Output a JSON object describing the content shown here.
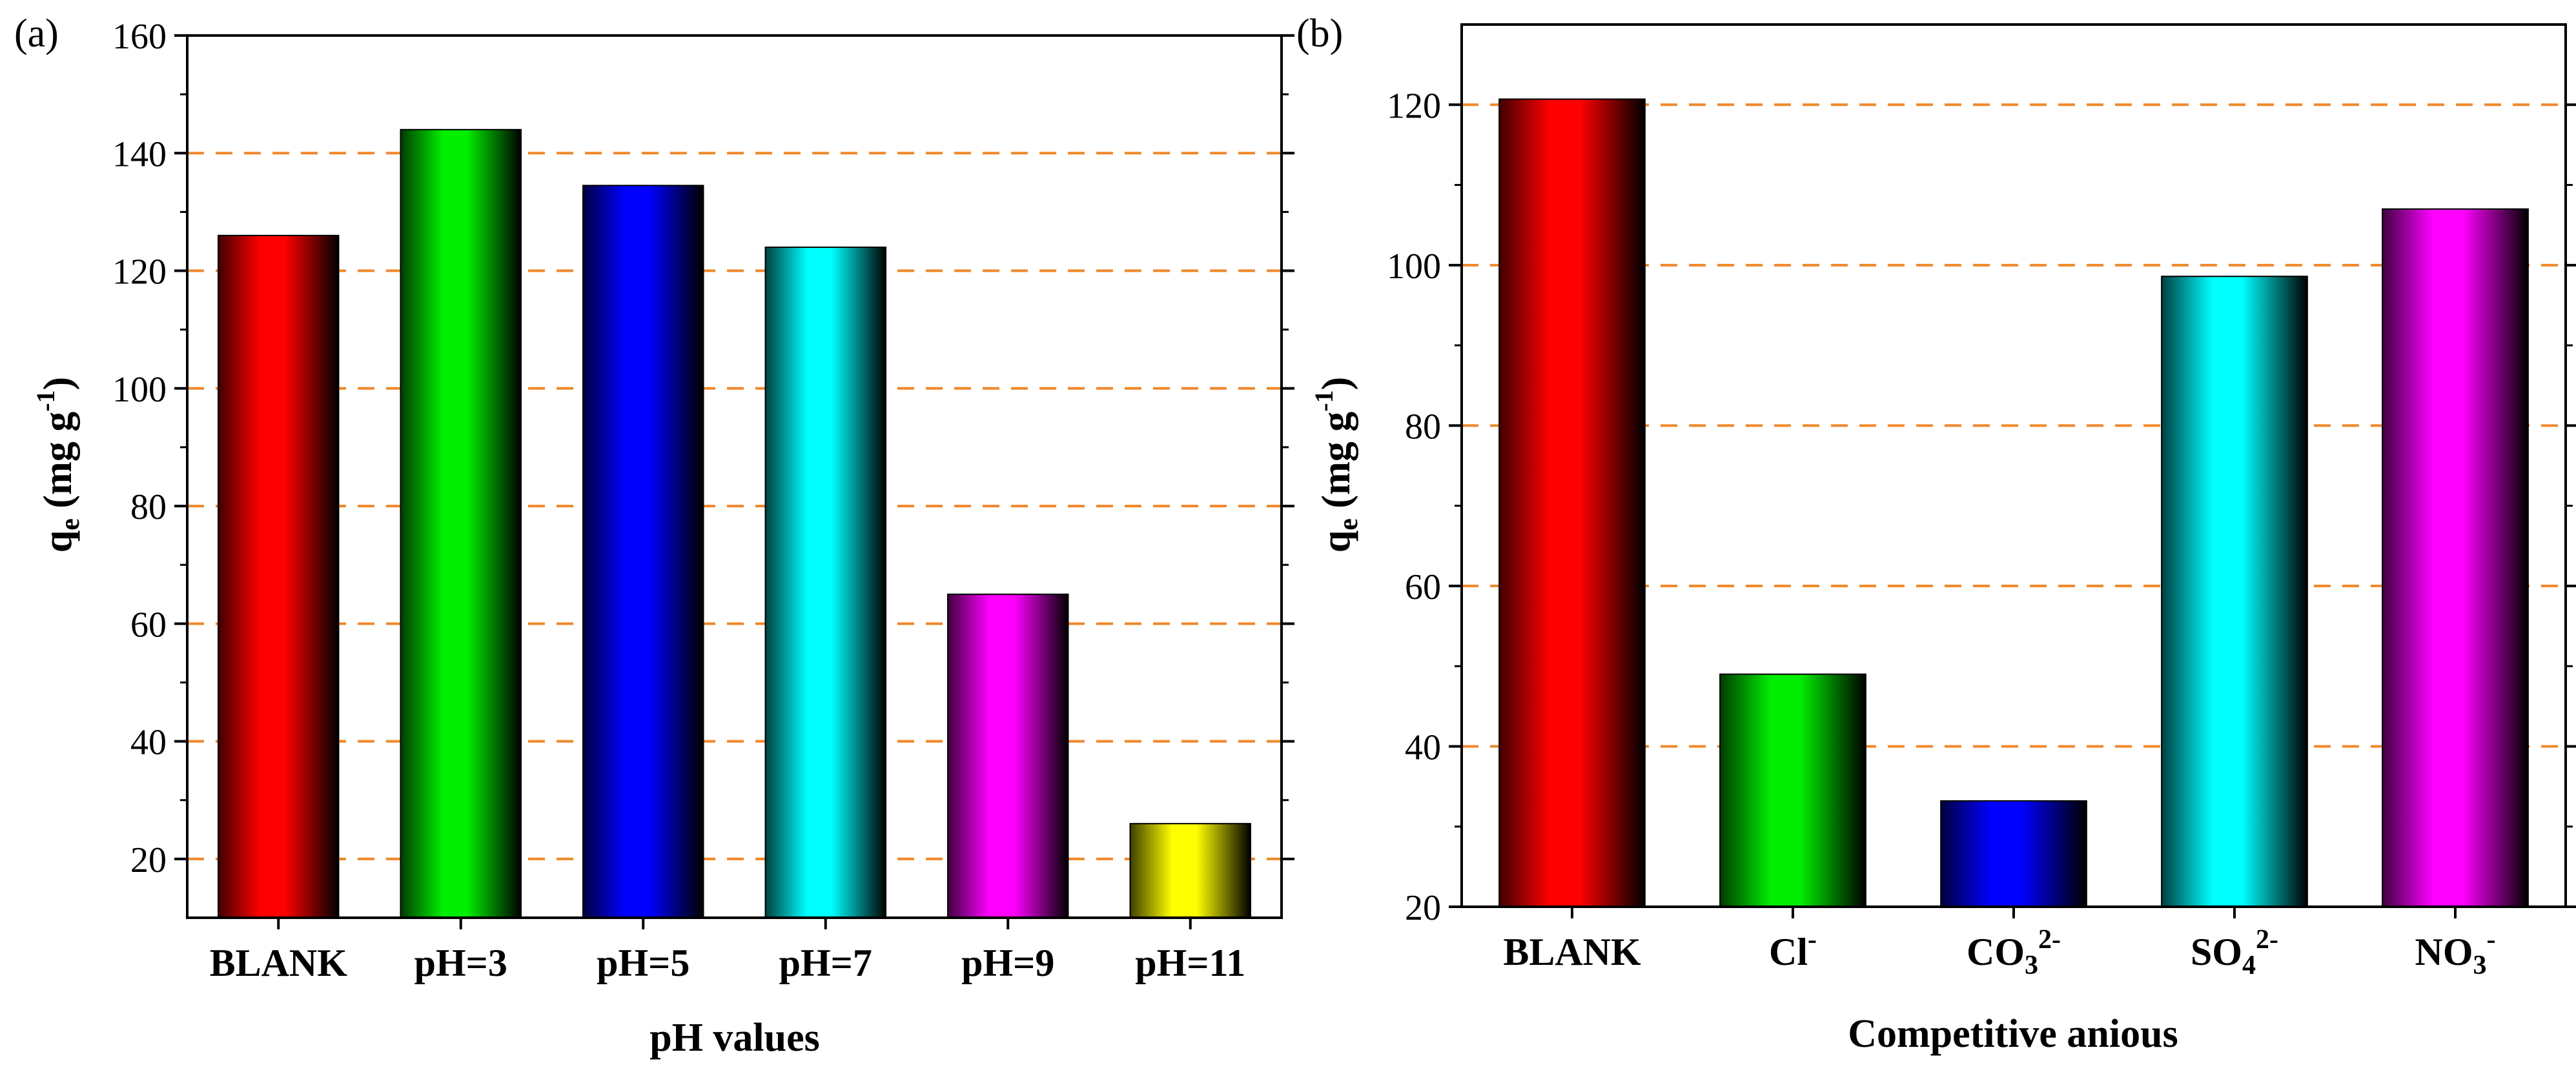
{
  "figure": {
    "colors": {
      "grid": "#f0882a",
      "red": "#ff0000",
      "green": "#00ee00",
      "blue": "#0000ff",
      "cyan": "#00ffff",
      "magenta": "#ff00ff",
      "yellow": "#ffff00"
    }
  },
  "chart_data": [
    {
      "type": "bar",
      "panel_label": "(a)",
      "title": "",
      "categories": [
        "BLANK",
        "pH=3",
        "pH=5",
        "pH=7",
        "pH=9",
        "pH=11"
      ],
      "values": [
        126,
        144,
        134.5,
        124,
        65,
        26
      ],
      "bar_colors": [
        "red",
        "green",
        "blue",
        "cyan",
        "magenta",
        "yellow"
      ],
      "xlabel": "pH values",
      "ylabel": {
        "main": "q",
        "sub": "e",
        "unit": "(mg g",
        "sup": "-1",
        "close": ")"
      },
      "ylim": [
        10,
        160
      ],
      "yticks": [
        "20",
        "40",
        "60",
        "80",
        "100",
        "120",
        "140",
        "160"
      ],
      "gridlines": [
        20,
        40,
        60,
        80,
        100,
        120,
        140
      ]
    },
    {
      "type": "bar",
      "panel_label": "(b)",
      "title": "",
      "categories": [
        {
          "base": "BLANK",
          "sub": "",
          "sup": ""
        },
        {
          "base": "Cl",
          "sub": "",
          "sup": "-"
        },
        {
          "base": "CO",
          "sub": "3",
          "sup": "2-"
        },
        {
          "base": "SO",
          "sub": "4",
          "sup": "2-"
        },
        {
          "base": "NO",
          "sub": "3",
          "sup": "-"
        }
      ],
      "values": [
        120.7,
        49,
        33.2,
        98.6,
        107
      ],
      "bar_colors": [
        "red",
        "green",
        "blue",
        "cyan",
        "magenta"
      ],
      "xlabel": "Competitive anious",
      "ylabel": {
        "main": "q",
        "sub": "e",
        "unit": "(mg g",
        "sup": "-1",
        "close": ")"
      },
      "ylim": [
        20,
        130
      ],
      "yticks": [
        "20",
        "40",
        "60",
        "80",
        "100",
        "120"
      ],
      "gridlines": [
        40,
        60,
        80,
        100,
        120
      ]
    }
  ]
}
